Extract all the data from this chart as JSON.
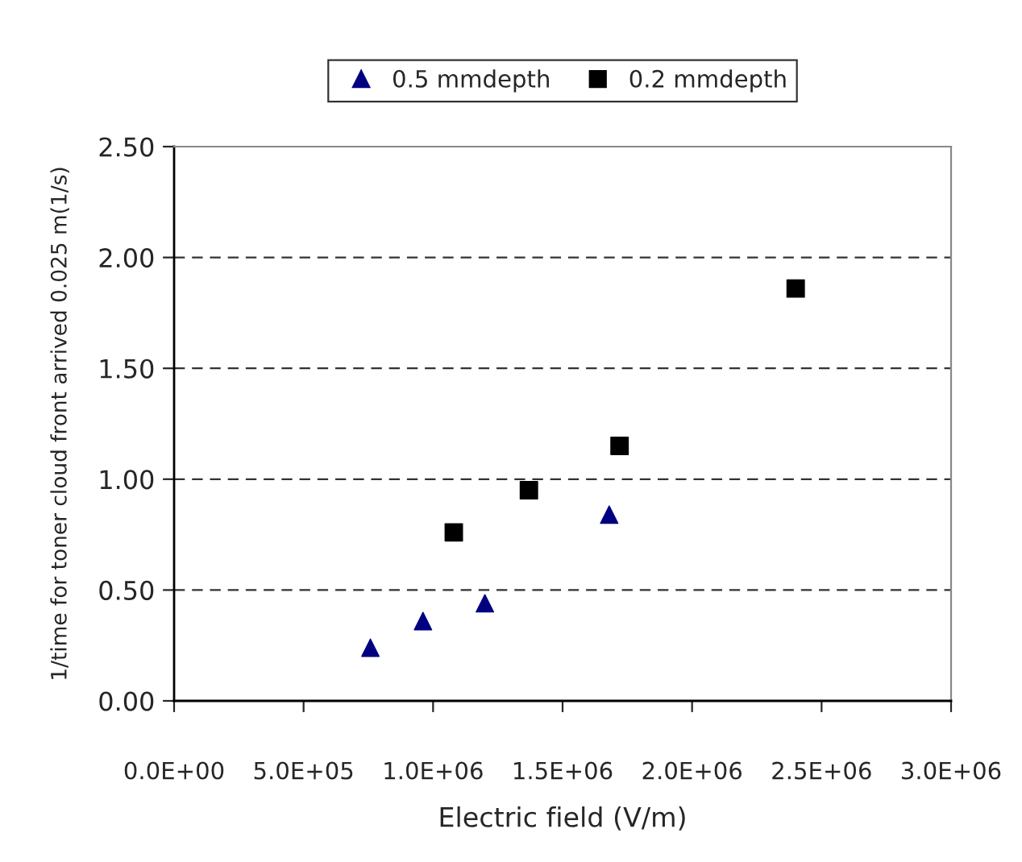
{
  "chart_data": {
    "type": "scatter",
    "xlabel": "Electric field (V/m)",
    "ylabel": "1/time for toner cloud front arrived 0.025 m(1/s)",
    "series": [
      {
        "name": "0.5 mmdepth",
        "color": "#000080",
        "marker": "triangle",
        "x": [
          758000,
          961000,
          1200000,
          1680000
        ],
        "values": [
          0.24,
          0.36,
          0.44,
          0.84
        ]
      },
      {
        "name": "0.2 mmdepth",
        "color": "#000000",
        "marker": "square",
        "x": [
          1080000,
          1370000,
          1720000,
          2400000
        ],
        "values": [
          0.76,
          0.95,
          1.15,
          1.86
        ]
      }
    ],
    "xlim": [
      0,
      3000000
    ],
    "xticks": [
      {
        "value": 0,
        "label": "0.0E+00"
      },
      {
        "value": 500000,
        "label": "5.0E+05"
      },
      {
        "value": 1000000,
        "label": "1.0E+06"
      },
      {
        "value": 1500000,
        "label": "1.5E+06"
      },
      {
        "value": 2000000,
        "label": "2.0E+06"
      },
      {
        "value": 2500000,
        "label": "2.5E+06"
      },
      {
        "value": 3000000,
        "label": "3.0E+06"
      }
    ],
    "ylim": [
      0,
      2.5
    ],
    "yticks": [
      {
        "value": 0,
        "label": "0.00"
      },
      {
        "value": 0.5,
        "label": "0.50"
      },
      {
        "value": 1.0,
        "label": "1.00"
      },
      {
        "value": 1.5,
        "label": "1.50"
      },
      {
        "value": 2.0,
        "label": "2.00"
      },
      {
        "value": 2.5,
        "label": "2.50"
      }
    ],
    "grid": "y",
    "legend": "top"
  }
}
